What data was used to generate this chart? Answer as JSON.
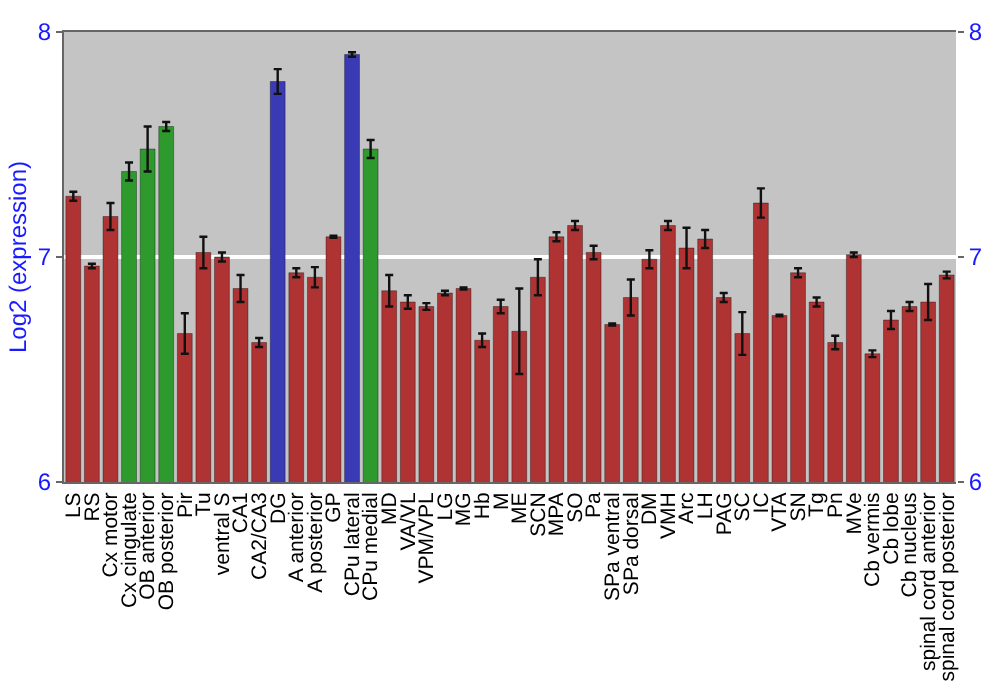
{
  "chart_data": {
    "type": "bar",
    "ylabel": "Log2 (expression)",
    "categories": [
      "LS",
      "RS",
      "Cx motor",
      "Cx cingulate",
      "OB anterior",
      "OB posterior",
      "Pir",
      "Tu",
      "ventral S",
      "CA1",
      "CA2/CA3",
      "DG",
      "A anterior",
      "A posterior",
      "GP",
      "CPu lateral",
      "CPu medial",
      "MD",
      "VA/VL",
      "VPM/VPL",
      "LG",
      "MG",
      "Hb",
      "M",
      "ME",
      "SCN",
      "MPA",
      "SO",
      "Pa",
      "SPa ventral",
      "SPa dorsal",
      "DM",
      "VMH",
      "Arc",
      "LH",
      "PAG",
      "SC",
      "IC",
      "VTA",
      "SN",
      "Tg",
      "Pn",
      "MVe",
      "Cb vermis",
      "Cb lobe",
      "Cb nucleus",
      "spinal cord anterior",
      "spinal cord posterior"
    ],
    "values": [
      7.27,
      6.96,
      7.18,
      7.38,
      7.48,
      7.58,
      6.66,
      7.02,
      7.0,
      6.86,
      6.62,
      7.78,
      6.93,
      6.91,
      7.09,
      7.9,
      7.48,
      6.85,
      6.8,
      6.78,
      6.84,
      6.86,
      6.63,
      6.78,
      6.67,
      6.91,
      7.09,
      7.14,
      7.02,
      6.7,
      6.82,
      6.99,
      7.14,
      7.04,
      7.08,
      6.82,
      6.66,
      7.24,
      6.74,
      6.93,
      6.8,
      6.62,
      7.01,
      6.57,
      6.72,
      6.78,
      6.8,
      6.92
    ],
    "errors": [
      0.02,
      0.01,
      0.06,
      0.04,
      0.1,
      0.02,
      0.09,
      0.07,
      0.02,
      0.06,
      0.02,
      0.055,
      0.02,
      0.045,
      0.005,
      0.01,
      0.04,
      0.07,
      0.03,
      0.015,
      0.01,
      0.005,
      0.03,
      0.03,
      0.19,
      0.08,
      0.02,
      0.02,
      0.03,
      0.005,
      0.08,
      0.04,
      0.02,
      0.09,
      0.04,
      0.02,
      0.095,
      0.065,
      0.003,
      0.02,
      0.02,
      0.03,
      0.01,
      0.015,
      0.04,
      0.02,
      0.08,
      0.015
    ],
    "colors": [
      "#b03333",
      "#b03333",
      "#b03333",
      "#2e9a2e",
      "#2e9a2e",
      "#2e9a2e",
      "#b03333",
      "#b03333",
      "#b03333",
      "#b03333",
      "#b03333",
      "#3a3ab4",
      "#b03333",
      "#b03333",
      "#b03333",
      "#3a3ab4",
      "#2e9a2e",
      "#b03333",
      "#b03333",
      "#b03333",
      "#b03333",
      "#b03333",
      "#b03333",
      "#b03333",
      "#b03333",
      "#b03333",
      "#b03333",
      "#b03333",
      "#b03333",
      "#b03333",
      "#b03333",
      "#b03333",
      "#b03333",
      "#b03333",
      "#b03333",
      "#b03333",
      "#b03333",
      "#b03333",
      "#b03333",
      "#b03333",
      "#b03333",
      "#b03333",
      "#b03333",
      "#b03333",
      "#b03333",
      "#b03333",
      "#b03333",
      "#b03333"
    ],
    "ylim": [
      6,
      8
    ],
    "yticks": [
      6,
      7,
      8
    ],
    "y2lim": [
      6,
      8
    ],
    "y2ticks": [
      6,
      7,
      8
    ],
    "grid": "y"
  }
}
